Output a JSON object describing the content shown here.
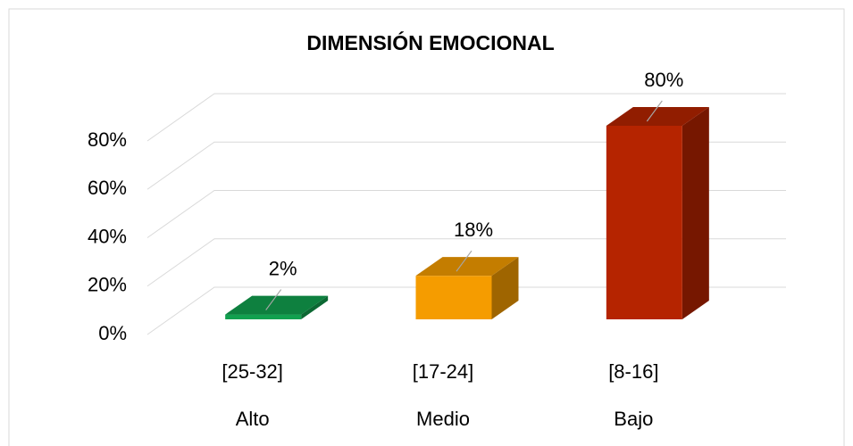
{
  "chart_data": {
    "type": "bar3d",
    "title": "DIMENSIÓN EMOCIONAL",
    "categories": [
      "Alto",
      "Medio",
      "Bajo"
    ],
    "category_ranges": [
      "[25-32]",
      "[17-24]",
      "[8-16]"
    ],
    "values": [
      2,
      18,
      80
    ],
    "value_labels": [
      "2%",
      "18%",
      "80%"
    ],
    "colors": [
      "#12a04f",
      "#f59c00",
      "#b52400"
    ],
    "ylim": [
      0,
      80
    ],
    "yticks": [
      {
        "value": 0,
        "label": "0%"
      },
      {
        "value": 20,
        "label": "20%"
      },
      {
        "value": 40,
        "label": "40%"
      },
      {
        "value": 60,
        "label": "60%"
      },
      {
        "value": 80,
        "label": "80%"
      }
    ],
    "grid": true
  }
}
